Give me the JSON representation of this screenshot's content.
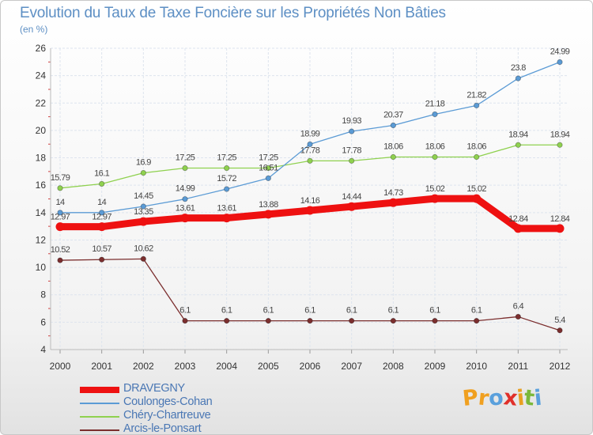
{
  "header": {
    "title": "Evolution du Taux de Taxe Foncière sur les Propriétés Non Bâties",
    "unit": "(en %)"
  },
  "brand": {
    "letters": [
      "P",
      "r",
      "o",
      "x",
      "i",
      "t",
      "i"
    ],
    "colors": [
      "#f0a020",
      "#f0a020",
      "#5aa0dc",
      "#e0302a",
      "#e8a020",
      "#7ab83a",
      "#5aa0dc"
    ]
  },
  "chart_data": {
    "type": "line",
    "title": "Evolution du Taux de Taxe Foncière sur les Propriétés Non Bâties",
    "ylabel": "(en %)",
    "xlabel": "",
    "x": [
      "2000",
      "2001",
      "2002",
      "2003",
      "2004",
      "2005",
      "2006",
      "2007",
      "2008",
      "2009",
      "2010",
      "2011",
      "2012"
    ],
    "ylim": [
      4,
      26
    ],
    "yticks": [
      4,
      6,
      8,
      10,
      12,
      14,
      16,
      18,
      20,
      22,
      24,
      26
    ],
    "grid": true,
    "legend": "bottom-left",
    "series": [
      {
        "name": "DRAVEGNY",
        "color": "#ee1111",
        "values": [
          12.97,
          12.97,
          13.35,
          13.61,
          13.61,
          13.88,
          14.16,
          14.44,
          14.73,
          15.02,
          15.02,
          12.84,
          12.84
        ],
        "labels": [
          "12.97",
          "12.97",
          "13.35",
          "13.61",
          "13.61",
          "13.88",
          "14.16",
          "14.44",
          "14.73",
          "15.02",
          "15.02",
          "12.84",
          "12.84"
        ]
      },
      {
        "name": "Coulonges-Cohan",
        "color": "#5b9bd5",
        "values": [
          14,
          14,
          14.45,
          14.99,
          15.72,
          16.51,
          18.99,
          19.93,
          20.37,
          21.18,
          21.82,
          23.8,
          24.99
        ],
        "labels": [
          "14",
          "14",
          "14.45",
          "14.99",
          "15.72",
          "16.51",
          "18.99",
          "19.93",
          "20.37",
          "21.18",
          "21.82",
          "23.8",
          "24.99"
        ]
      },
      {
        "name": "Chéry-Chartreuve",
        "color": "#8fd14f",
        "values": [
          15.79,
          16.1,
          16.9,
          17.25,
          17.25,
          17.25,
          17.78,
          17.78,
          18.06,
          18.06,
          18.06,
          18.94,
          18.94
        ],
        "labels": [
          "15.79",
          "16.1",
          "16.9",
          "17.25",
          "17.25",
          "17.25",
          "17.78",
          "17.78",
          "18.06",
          "18.06",
          "18.06",
          "18.94",
          "18.94"
        ]
      },
      {
        "name": "Arcis-le-Ponsart",
        "color": "#7b2e2e",
        "values": [
          10.52,
          10.57,
          10.62,
          6.1,
          6.1,
          6.1,
          6.1,
          6.1,
          6.1,
          6.1,
          6.1,
          6.4,
          5.4
        ],
        "labels": [
          "10.52",
          "10.57",
          "10.62",
          "6.1",
          "6.1",
          "6.1",
          "6.1",
          "6.1",
          "6.1",
          "6.1",
          "6.1",
          "6.4",
          "5.4"
        ]
      }
    ]
  }
}
